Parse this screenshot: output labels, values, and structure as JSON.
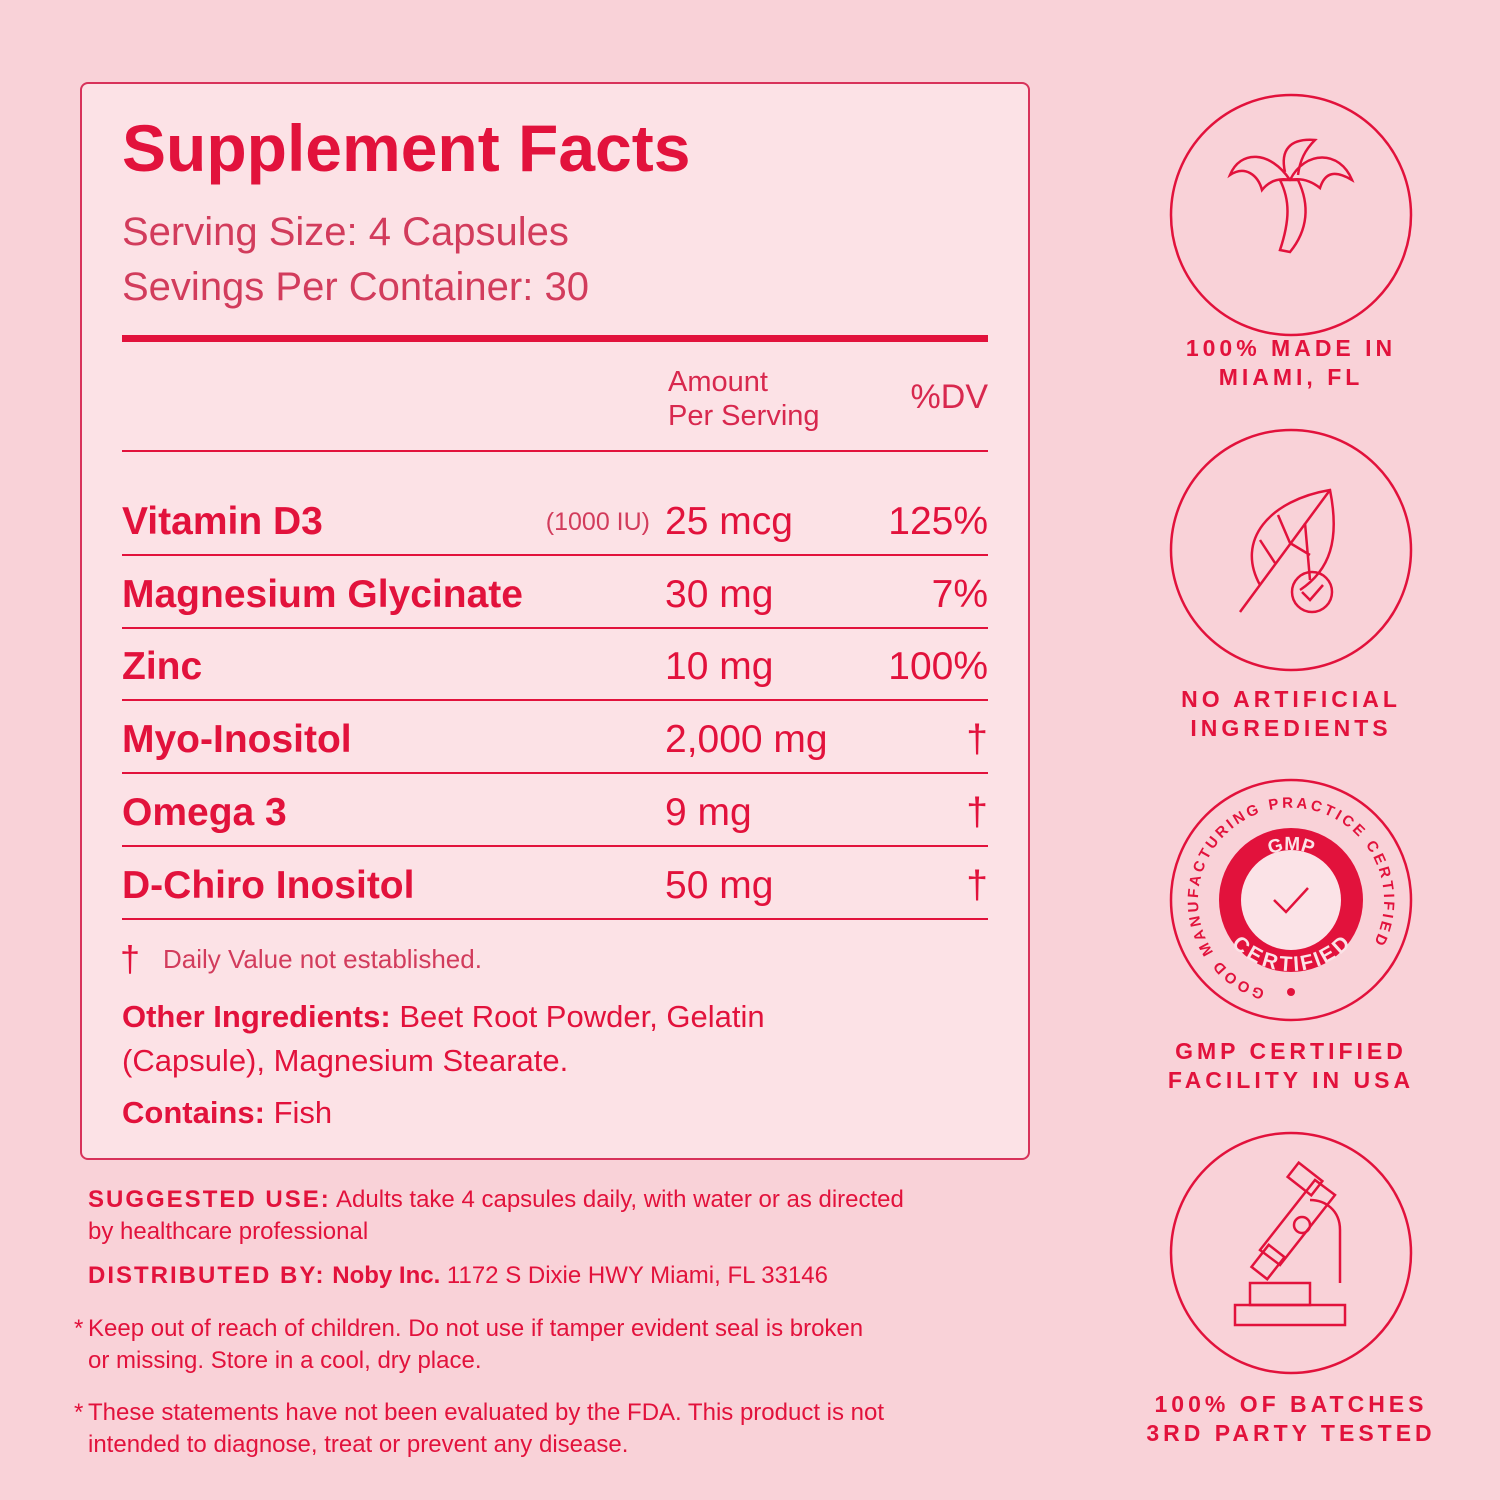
{
  "facts": {
    "title": "Supplement Facts",
    "serving_size": "Serving Size: 4 Capsules",
    "servings_per_container": "Sevings Per Container: 30",
    "header": {
      "amount": [
        "Amount",
        "Per Serving"
      ],
      "dv": "%DV"
    },
    "rows": [
      {
        "name": "Vitamin D3",
        "note": "(1000 IU)",
        "amount": "25 mcg",
        "dv": "125%"
      },
      {
        "name": "Magnesium Glycinate",
        "amount": "30 mg",
        "dv": "7%"
      },
      {
        "name": "Zinc",
        "amount": "10 mg",
        "dv": "100%"
      },
      {
        "name": "Myo-Inositol",
        "amount": "2,000 mg",
        "dv": "†"
      },
      {
        "name": "Omega 3",
        "amount": "9 mg",
        "dv": "†"
      },
      {
        "name": "D-Chiro Inositol",
        "amount": "50 mg",
        "dv": "†"
      }
    ],
    "footnote": {
      "symbol": "†",
      "text": "Daily Value not established."
    },
    "other_ingredients": {
      "label": "Other Ingredients:",
      "text": "Beet Root Powder, Gelatin (Capsule), Magnesium Stearate."
    },
    "contains": {
      "label": "Contains:",
      "text": "Fish"
    }
  },
  "suggested_use": {
    "label": "SUGGESTED USE:",
    "text": "Adults take 4 capsules daily, with water or as directed by healthcare professional"
  },
  "distributed_by": {
    "label": "DISTRIBUTED BY:",
    "company": "Noby Inc.",
    "address": "1172 S Dixie HWY Miami, FL 33146"
  },
  "warnings": [
    {
      "mark": "*",
      "text": "Keep out of reach of children. Do not use if tamper evident seal is broken or missing. Store in a cool, dry place."
    },
    {
      "mark": "*",
      "text": "These statements have not been evaluated by the FDA. This product is not intended to diagnose, treat or prevent any disease."
    }
  ],
  "badges": [
    {
      "lines": [
        "100% MADE IN",
        "MIAMI, FL"
      ]
    },
    {
      "lines": [
        "NO ARTIFICIAL",
        "INGREDIENTS"
      ]
    },
    {
      "lines": [
        "GMP CERTIFIED",
        "FACILITY IN USA"
      ],
      "seal": {
        "ring": "GOOD MANUFACTURING PRACTICE CERTIFIED",
        "top": "GMP",
        "bottom": "CERTIFIED"
      }
    },
    {
      "lines": [
        "100% OF BATCHES",
        "3RD PARTY TESTED"
      ]
    }
  ]
}
